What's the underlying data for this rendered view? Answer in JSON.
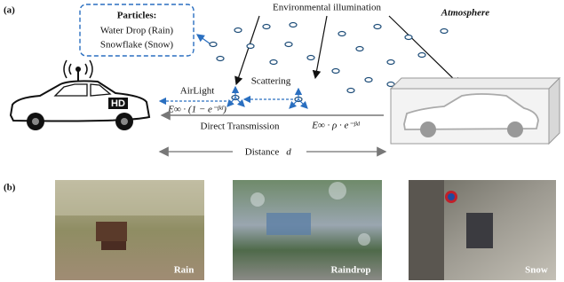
{
  "panel_a": {
    "label": "(a)",
    "particles": {
      "title": "Particles:",
      "items": [
        "Water Drop (Rain)",
        "Snowflake (Snow)"
      ]
    },
    "illumination": "Environmental illumination",
    "atmosphere": "Atmosphere",
    "scattering": "Scattering",
    "airlight": {
      "label": "AirLight",
      "formula": "E∞ · (1 − e⁻ᵝᵈ)"
    },
    "direct": {
      "label": "Direct Transmission",
      "formula": "E∞ · ρ · e⁻ᵝᵈ"
    },
    "distance": {
      "label": "Distance",
      "symbol": "d"
    },
    "badge": "HD"
  },
  "panel_b": {
    "label": "(b)",
    "images": [
      "Rain",
      "Raindrop",
      "Snow"
    ]
  }
}
